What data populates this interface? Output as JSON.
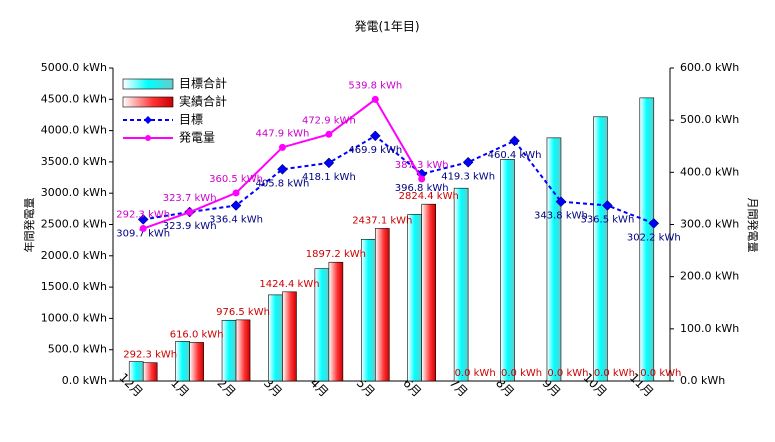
{
  "chart_data": {
    "type": "combo",
    "title": "発電(1年目)",
    "ylabel": "年間発電量",
    "y2label": "月間発電量",
    "categories": [
      "12月",
      "1月",
      "2月",
      "3月",
      "4月",
      "5月",
      "6月",
      "7月",
      "8月",
      "9月",
      "10月",
      "11月"
    ],
    "ylim": [
      0,
      5000
    ],
    "yticks": [
      {
        "value": 0,
        "label": "0.0 kWh"
      },
      {
        "value": 500,
        "label": "500.0 kWh"
      },
      {
        "value": 1000,
        "label": "1000.0 kWh"
      },
      {
        "value": 1500,
        "label": "1500.0 kWh"
      },
      {
        "value": 2000,
        "label": "2000.0 kWh"
      },
      {
        "value": 2500,
        "label": "2500.0 kWh"
      },
      {
        "value": 3000,
        "label": "3000.0 kWh"
      },
      {
        "value": 3500,
        "label": "3500.0 kWh"
      },
      {
        "value": 4000,
        "label": "4000.0 kWh"
      },
      {
        "value": 4500,
        "label": "4500.0 kWh"
      },
      {
        "value": 5000,
        "label": "5000.0 kWh"
      }
    ],
    "y2lim": [
      0,
      600
    ],
    "y2ticks": [
      {
        "value": 0,
        "label": "0.0 kWh"
      },
      {
        "value": 100,
        "label": "100.0 kWh"
      },
      {
        "value": 200,
        "label": "200.0 kWh"
      },
      {
        "value": 300,
        "label": "300.0 kWh"
      },
      {
        "value": 400,
        "label": "400.0 kWh"
      },
      {
        "value": 500,
        "label": "500.0 kWh"
      },
      {
        "value": 600,
        "label": "600.0 kWh"
      }
    ],
    "legend": "upper left",
    "series": [
      {
        "name": "目標合計",
        "type": "bar",
        "color": "#00ffff",
        "values": [
          309.7,
          633.6,
          970.0,
          1375.8,
          1793.9,
          2263.8,
          2660.6,
          3079.9,
          3540.3,
          3884.1,
          4220.6,
          4522.8
        ]
      },
      {
        "name": "実績合計",
        "type": "bar",
        "color": "#ff3333",
        "values": [
          292.3,
          616.0,
          976.5,
          1424.4,
          1897.2,
          2437.1,
          2824.4,
          0,
          0,
          0,
          0,
          0
        ],
        "value_labels": [
          "292.3 kWh",
          "616.0 kWh",
          "976.5 kWh",
          "1424.4 kWh",
          "1897.2 kWh",
          "2437.1 kWh",
          "2824.4 kWh",
          "0.0 kWh",
          "0.0 kWh",
          "0.0 kWh",
          "0.0 kWh",
          "0.0 kWh"
        ]
      },
      {
        "name": "目標",
        "type": "line",
        "axis": "y2",
        "color": "#0000ff",
        "dashed": true,
        "values": [
          309.7,
          323.9,
          336.4,
          405.8,
          418.1,
          469.9,
          396.8,
          419.3,
          460.4,
          343.8,
          336.5,
          302.2
        ],
        "value_labels": [
          "309.7 kWh",
          "323.9 kWh",
          "336.4 kWh",
          "405.8 kWh",
          "418.1 kWh",
          "469.9 kWh",
          "396.8 kWh",
          "419.3 kWh",
          "460.4 kWh",
          "343.8 kWh",
          "336.5 kWh",
          "302.2 kWh"
        ]
      },
      {
        "name": "発電量",
        "type": "line",
        "axis": "y2",
        "color": "#ff00ff",
        "dashed": false,
        "values": [
          292.3,
          323.7,
          360.5,
          447.9,
          472.9,
          539.8,
          387.3,
          null,
          null,
          null,
          null,
          null
        ],
        "value_labels": [
          "292.3 kWh",
          "323.7 kWh",
          "360.5 kWh",
          "447.9 kWh",
          "472.9 kWh",
          "539.8 kWh",
          "387.3 kWh",
          null,
          null,
          null,
          null,
          null
        ]
      }
    ]
  }
}
